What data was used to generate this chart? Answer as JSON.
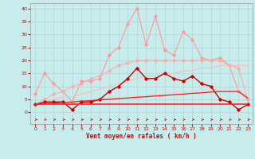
{
  "x": [
    0,
    1,
    2,
    3,
    4,
    5,
    6,
    7,
    8,
    9,
    10,
    11,
    12,
    13,
    14,
    15,
    16,
    17,
    18,
    19,
    20,
    21,
    22,
    23
  ],
  "series": [
    {
      "name": "rafales_max",
      "color": "#ff9999",
      "lw": 0.8,
      "marker": "D",
      "ms": 1.8,
      "y": [
        7,
        15,
        11,
        8,
        4,
        12,
        12,
        13,
        22,
        25,
        34,
        40,
        26,
        37,
        24,
        22,
        31,
        28,
        21,
        20,
        21,
        18,
        8,
        5
      ]
    },
    {
      "name": "interp_high",
      "color": "#ffaaaa",
      "lw": 0.8,
      "marker": "D",
      "ms": 1.8,
      "y": [
        3,
        5,
        7,
        8,
        10,
        11,
        13,
        14,
        16,
        18,
        19,
        20,
        20,
        20,
        20,
        20,
        20,
        20,
        20,
        20,
        20,
        18,
        17,
        5
      ]
    },
    {
      "name": "interp_slope1",
      "color": "#ffbbbb",
      "lw": 0.8,
      "marker": null,
      "ms": 0,
      "y": [
        3,
        4,
        5,
        6,
        6,
        7,
        8,
        9,
        10,
        11,
        12,
        13,
        14,
        14,
        15,
        15,
        16,
        16,
        17,
        17,
        18,
        18,
        18,
        18
      ]
    },
    {
      "name": "interp_slope2",
      "color": "#ffcccc",
      "lw": 0.8,
      "marker": null,
      "ms": 0,
      "y": [
        3,
        3.3,
        3.6,
        3.9,
        4.2,
        4.5,
        4.8,
        5.1,
        5.4,
        5.7,
        6.0,
        6.3,
        6.6,
        6.9,
        7.2,
        7.5,
        7.8,
        8.1,
        8.4,
        8.7,
        9.0,
        9.0,
        9.0,
        6.0
      ]
    },
    {
      "name": "vent_max",
      "color": "#cc0000",
      "lw": 1.0,
      "marker": "D",
      "ms": 1.8,
      "y": [
        3,
        4,
        4,
        4,
        1,
        4,
        4,
        5,
        8,
        10,
        13,
        17,
        13,
        13,
        15,
        13,
        12,
        14,
        11,
        10,
        5,
        4,
        1,
        3
      ]
    },
    {
      "name": "vent_moy_grad",
      "color": "#dd2222",
      "lw": 0.9,
      "marker": null,
      "ms": 0,
      "y": [
        3,
        3.3,
        3.5,
        3.8,
        4.0,
        4.3,
        4.5,
        4.8,
        5.0,
        5.3,
        5.5,
        5.8,
        6.0,
        6.3,
        6.5,
        6.8,
        7.0,
        7.3,
        7.5,
        7.8,
        8.0,
        8.0,
        8.0,
        5.5
      ]
    },
    {
      "name": "flat_low",
      "color": "#ff2222",
      "lw": 1.2,
      "marker": null,
      "ms": 0,
      "y": [
        3,
        3,
        3,
        3,
        3,
        3,
        3,
        3,
        3,
        3,
        3,
        3,
        3,
        3,
        3,
        3,
        3,
        3,
        3,
        3,
        3,
        3,
        3,
        3
      ]
    }
  ],
  "xlabel": "Vent moyen/en rafales ( km/h )",
  "xlim": [
    -0.5,
    23.5
  ],
  "ylim": [
    -4.5,
    42
  ],
  "yticks": [
    0,
    5,
    10,
    15,
    20,
    25,
    30,
    35,
    40
  ],
  "xticks": [
    0,
    1,
    2,
    3,
    4,
    5,
    6,
    7,
    8,
    9,
    10,
    11,
    12,
    13,
    14,
    15,
    16,
    17,
    18,
    19,
    20,
    21,
    22,
    23
  ],
  "bg_color": "#c8ecec",
  "grid_color": "#aad8d8",
  "tick_color": "#cc0000",
  "arrow_color": "#cc0000",
  "xlabel_color": "#cc0000"
}
